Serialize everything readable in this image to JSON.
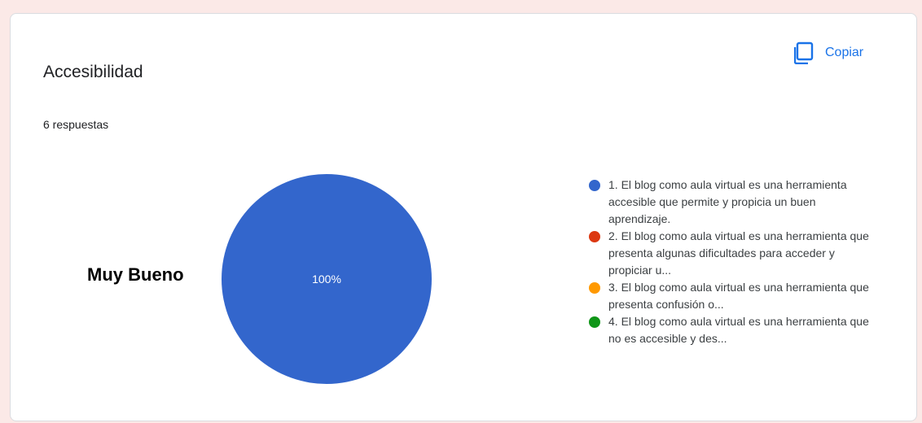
{
  "card": {
    "title": "Accesibilidad",
    "response_count": "6 respuestas",
    "copy_label": "Copiar"
  },
  "annotation": "Muy Bueno",
  "chart_data": {
    "type": "pie",
    "title": "Accesibilidad",
    "categories": [
      "1. El blog como aula virtual es una herramienta accesible que permite y propicia un buen aprendizaje.",
      "2. El blog como aula virtual es una herramienta que presenta algunas dificultades para acceder y propiciar u...",
      "3. El blog como aula virtual es una herramienta que presenta confusión o...",
      "4. El blog como aula virtual es una herramienta que no es accesible y des..."
    ],
    "values": [
      100,
      0,
      0,
      0
    ],
    "colors": [
      "#3366cc",
      "#dc3912",
      "#ff9900",
      "#109618"
    ],
    "slice_labels": [
      "100%",
      "",
      "",
      ""
    ],
    "legend_position": "right"
  }
}
